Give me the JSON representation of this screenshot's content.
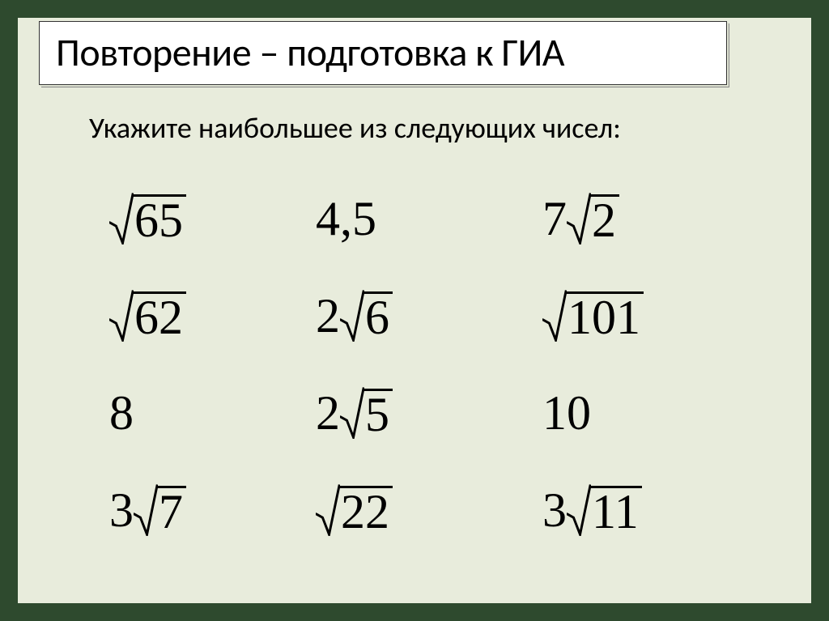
{
  "slide": {
    "background_color": "#e8ecdc",
    "outer_border_color": "#2e4a2e",
    "outer_border_width": 22,
    "title": "Повторение – подготовка к ГИА",
    "title_fontsize": 48,
    "title_color": "#000000",
    "subtitle": "Укажите наибольшее из следующих чисел:",
    "subtitle_fontsize": 36,
    "subtitle_color": "#000000",
    "math_fontsize": 60,
    "math_color": "#000000",
    "cells": {
      "c1": {
        "coef": "",
        "rad": "65",
        "plain": ""
      },
      "c2": {
        "coef": "",
        "rad": "",
        "plain": "4,5"
      },
      "c3": {
        "coef": "7",
        "rad": "2",
        "plain": ""
      },
      "c4": {
        "coef": "",
        "rad": "62",
        "plain": ""
      },
      "c5": {
        "coef": "2",
        "rad": "6",
        "plain": ""
      },
      "c6": {
        "coef": "",
        "rad": "101",
        "plain": ""
      },
      "c7": {
        "coef": "",
        "rad": "",
        "plain": "8"
      },
      "c8": {
        "coef": "2",
        "rad": "5",
        "plain": ""
      },
      "c9": {
        "coef": "",
        "rad": "",
        "plain": "10"
      },
      "c10": {
        "coef": "3",
        "rad": "7",
        "plain": ""
      },
      "c11": {
        "coef": "",
        "rad": "22",
        "plain": ""
      },
      "c12": {
        "coef": "3",
        "rad": "11",
        "plain": ""
      }
    },
    "sqrt_style": {
      "bar_thickness": 3,
      "radical_width": 30,
      "radical_height": 64
    }
  }
}
